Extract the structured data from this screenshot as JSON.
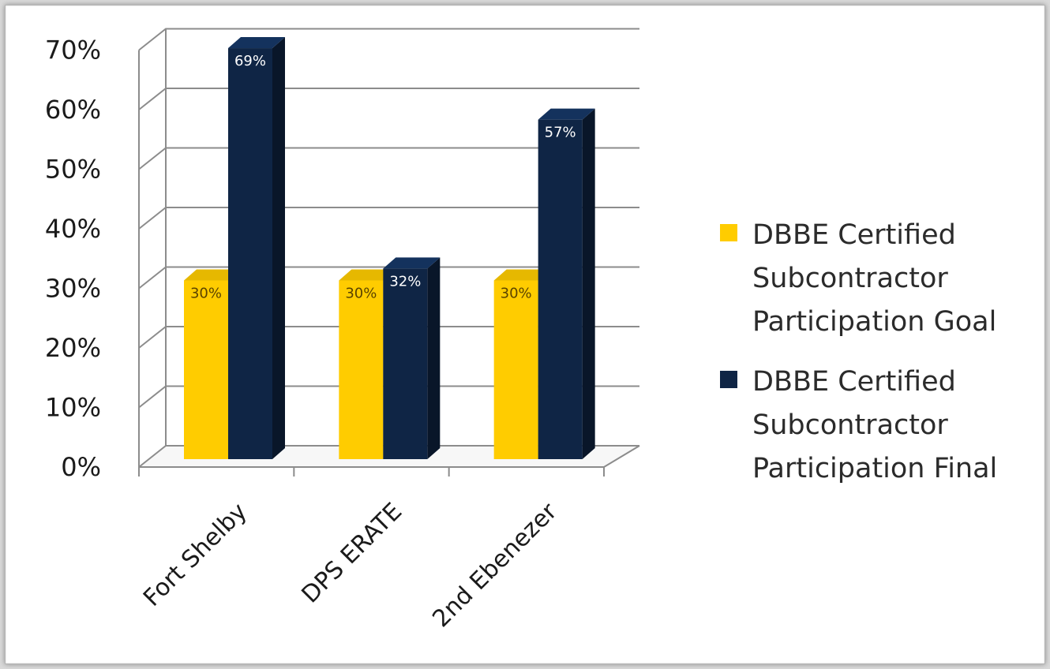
{
  "chart_data": {
    "type": "bar",
    "categories": [
      "Fort Shelby",
      "DPS ERATE",
      "2nd Ebenezer"
    ],
    "series": [
      {
        "name": "DBBE Certified Subcontractor Participation Goal",
        "name_lines": [
          "DBBE Certified",
          "Subcontractor",
          "Participation Goal"
        ],
        "values": [
          30,
          30,
          30
        ],
        "labels": [
          "30%",
          "30%",
          "30%"
        ],
        "color": "#ffcc00"
      },
      {
        "name": "DBBE Certified Subcontractor Participation Final",
        "name_lines": [
          "DBBE Certified",
          "Subcontractor",
          "Participation Final"
        ],
        "values": [
          69,
          32,
          57
        ],
        "labels": [
          "69%",
          "32%",
          "57%"
        ],
        "color": "#0f2545"
      }
    ],
    "yticks": [
      "0%",
      "10%",
      "20%",
      "30%",
      "40%",
      "50%",
      "60%",
      "70%"
    ],
    "ylim": [
      0,
      70
    ],
    "title": "",
    "xlabel": "",
    "ylabel": "",
    "grid": true,
    "legend_position": "right",
    "style": "3d-column"
  }
}
